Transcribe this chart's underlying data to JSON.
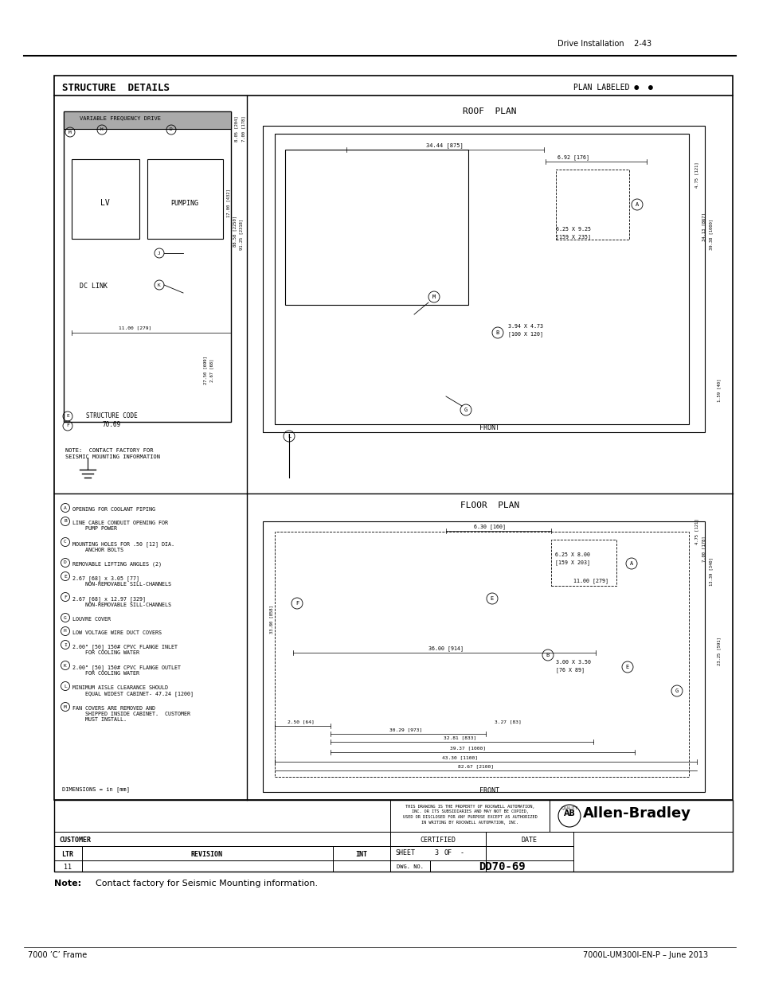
{
  "page_header_right": "Drive Installation    2-43",
  "note_text": "Note:  Contact factory for Seismic Mounting information.",
  "footer_left": "7000 ’C’ Frame",
  "footer_right": "7000L-UM300I-EN-P – June 2013",
  "title_text": "STRUCTURE  DETAILS",
  "plan_labeled": "PLAN LABELED ●  ●",
  "roof_plan_label": "ROOF  PLAN",
  "floor_plan_label": "FLOOR  PLAN",
  "front_label_top": "FRONT",
  "front_label_bottom": "FRONT",
  "bg_color": "#ffffff",
  "line_color": "#000000",
  "dimensions_note": "DIMENSIONS = in [mm]",
  "struct_code": "STRUCTURE CODE\n70.69",
  "vfd_label": "VARIABLE FREQUENCY DRIVE",
  "lv_label": "LV",
  "pumping_label": "PUMPING",
  "dc_link_label": "DC LINK",
  "note_contact": "NOTE:  CONTACT FACTORY FOR\nSEISMIC MOUNTING INFORMATION",
  "certified_label": "CERTIFIED",
  "date_label": "DATE",
  "ltr_label": "LTR",
  "revision_label": "REVISION",
  "int_label": "INT",
  "sheet_label": "SHEET",
  "sheet_num": "3",
  "of_label": "OF",
  "dwg_no_label": "DWG. NO.",
  "dwg_no": "DD70-69",
  "customer_label": "CUSTOMER",
  "rev_row": "11"
}
